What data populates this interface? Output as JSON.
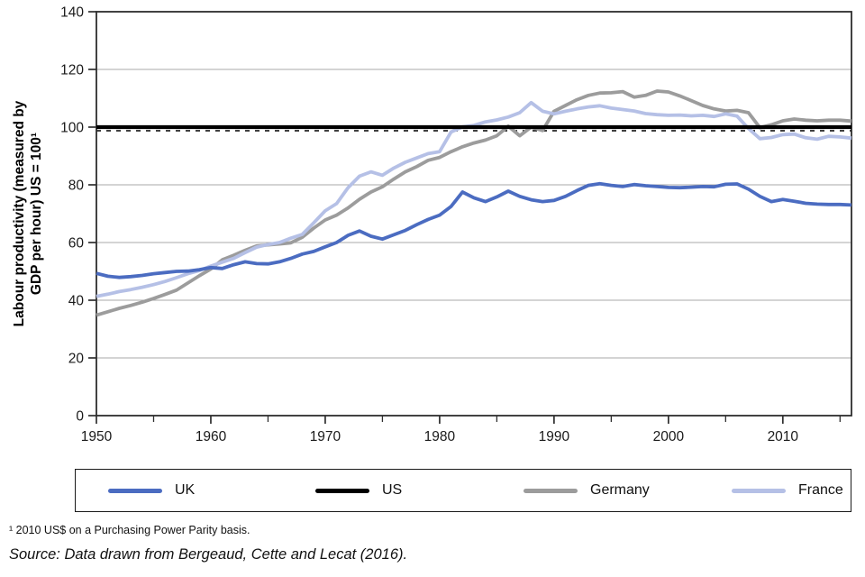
{
  "chart_data": {
    "type": "line",
    "title": "",
    "ylabel_lines": [
      "Labour productivity (measured by",
      "GDP per hour) US = 100¹"
    ],
    "xlabel": "",
    "x_start": 1950,
    "x_end": 2016,
    "x_major_ticks": [
      1950,
      1960,
      1970,
      1980,
      1990,
      2000,
      2010
    ],
    "x_minor_ticks": [
      1955,
      1965,
      1975,
      1985,
      1995,
      2005,
      2015
    ],
    "ylim": [
      0,
      140
    ],
    "y_ticks": [
      0,
      20,
      40,
      60,
      80,
      100,
      120,
      140
    ],
    "grid": "horizontal",
    "grid_color": "#a9a9a9",
    "axis_color": "#2e2e2e",
    "legend_position": "bottom",
    "draw_order": [
      "Germany",
      "France",
      "UK",
      "US"
    ],
    "series": [
      {
        "name": "UK",
        "color": "#4b6cc1",
        "values": [
          49.3,
          48.3,
          47.9,
          48.2,
          48.6,
          49.2,
          49.6,
          50,
          50.1,
          50.6,
          51.3,
          51,
          52.3,
          53.3,
          52.7,
          52.6,
          53.3,
          54.5,
          56,
          56.9,
          58.5,
          60,
          62.5,
          64,
          62.2,
          61.2,
          62.7,
          64.2,
          66.2,
          68,
          69.5,
          72.5,
          77.5,
          75.5,
          74.2,
          75.8,
          77.8,
          76,
          74.8,
          74.2,
          74.6,
          76,
          78,
          79.8,
          80.4,
          79.8,
          79.4,
          80.1,
          79.7,
          79.4,
          79.1,
          79,
          79.2,
          79.4,
          79.3,
          80.2,
          80.3,
          78.5,
          76,
          74.2,
          74.9,
          74.3,
          73.6,
          73.3,
          73.2,
          73.2,
          73
        ]
      },
      {
        "name": "US",
        "color": "#000000",
        "values": [
          100,
          100,
          100,
          100,
          100,
          100,
          100,
          100,
          100,
          100,
          100,
          100,
          100,
          100,
          100,
          100,
          100,
          100,
          100,
          100,
          100,
          100,
          100,
          100,
          100,
          100,
          100,
          100,
          100,
          100,
          100,
          100,
          100,
          100,
          100,
          100,
          100,
          100,
          100,
          100,
          100,
          100,
          100,
          100,
          100,
          100,
          100,
          100,
          100,
          100,
          100,
          100,
          100,
          100,
          100,
          100,
          100,
          100,
          100,
          100,
          100,
          100,
          100,
          100,
          100,
          100,
          100
        ]
      },
      {
        "name": "Germany",
        "color": "#9c9c9c",
        "values": [
          34.8,
          36,
          37.2,
          38.2,
          39.3,
          40.6,
          42,
          43.5,
          46,
          48.5,
          50.8,
          54,
          55.6,
          57.3,
          58.8,
          59.2,
          59.5,
          59.9,
          61.8,
          65,
          67.8,
          69.5,
          72,
          75,
          77.5,
          79.3,
          82,
          84.5,
          86.3,
          88.5,
          89.5,
          91.5,
          93.2,
          94.5,
          95.5,
          97,
          100.3,
          97,
          100,
          98.8,
          105.5,
          107.5,
          109.5,
          111,
          111.8,
          111.9,
          112.3,
          110.4,
          111,
          112.5,
          112.2,
          110.8,
          109.2,
          107.5,
          106.3,
          105.6,
          105.8,
          105,
          99.8,
          100.8,
          102.2,
          102.8,
          102.4,
          102.2,
          102.4,
          102.4,
          102.1
        ]
      },
      {
        "name": "France",
        "color": "#b5c0e6",
        "values": [
          41.3,
          42.1,
          43,
          43.7,
          44.5,
          45.4,
          46.5,
          47.8,
          49.2,
          50.3,
          51.8,
          53.2,
          54.5,
          56.5,
          58.4,
          59.3,
          60,
          61.5,
          62.8,
          66.8,
          71,
          73.5,
          79,
          83,
          84.5,
          83.3,
          85.8,
          87.8,
          89.3,
          90.8,
          91.5,
          98.3,
          100.1,
          100.6,
          101.8,
          102.5,
          103.5,
          105,
          108.5,
          105.5,
          104.6,
          105.5,
          106.3,
          107,
          107.4,
          106.6,
          106.1,
          105.6,
          104.7,
          104.3,
          104.1,
          104.2,
          103.9,
          104.1,
          103.7,
          104.6,
          103.8,
          99.5,
          96,
          96.4,
          97.4,
          97.6,
          96.3,
          95.8,
          96.8,
          96.6,
          96.2
        ]
      }
    ]
  },
  "legend": {
    "items": [
      {
        "label": "UK",
        "color": "#4b6cc1"
      },
      {
        "label": "US",
        "color": "#000000"
      },
      {
        "label": "Germany",
        "color": "#9c9c9c"
      },
      {
        "label": "France",
        "color": "#b5c0e6"
      }
    ]
  },
  "footnote": "¹ 2010 US$ on a Purchasing Power Parity basis.",
  "source": "Source: Data drawn from Bergeaud, Cette and Lecat (2016)."
}
